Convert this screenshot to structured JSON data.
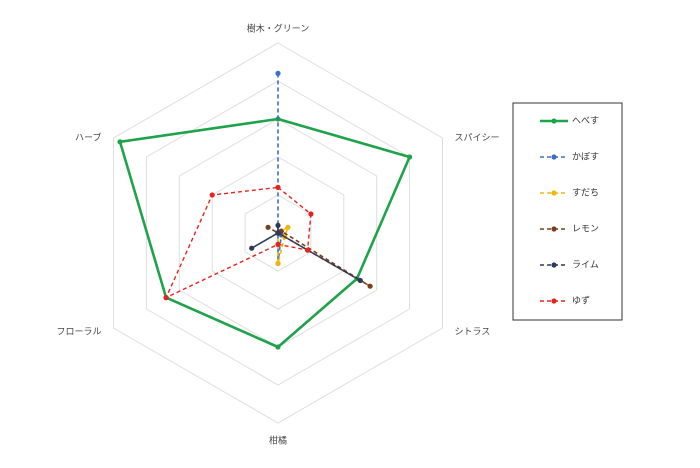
{
  "chart_data": {
    "type": "radar",
    "axes": [
      "樹木・グリーン",
      "スパイシー",
      "シトラス",
      "柑橘",
      "フローラル",
      "ハーブ"
    ],
    "rmax": 5,
    "grid_levels": 5,
    "grid": true,
    "legend_position": "right",
    "series": [
      {
        "name": "へべす",
        "color": "#1fa34a",
        "dash": "",
        "width": 2.6,
        "values": [
          3.0,
          4.0,
          2.4,
          3.0,
          3.4,
          4.8
        ]
      },
      {
        "name": "かぼす",
        "color": "#3d6ec9",
        "dash": "4,3",
        "width": 1.6,
        "values": [
          4.2,
          0.0,
          0.1,
          0.8,
          0.0,
          0.0
        ]
      },
      {
        "name": "すだち",
        "color": "#f2b705",
        "dash": "4,3",
        "width": 1.6,
        "values": [
          0.0,
          0.3,
          0.2,
          0.8,
          0.0,
          0.0
        ]
      },
      {
        "name": "レモン",
        "color": "#7b3f18",
        "dash": "4,3",
        "width": 1.6,
        "values": [
          0.0,
          0.1,
          2.8,
          0.0,
          0.0,
          0.3
        ]
      },
      {
        "name": "ライム",
        "color": "#2d3a5e",
        "dash": "4,3",
        "width": 1.6,
        "values": [
          0.2,
          0.0,
          2.5,
          0.0,
          0.8,
          0.0
        ]
      },
      {
        "name": "ゆず",
        "color": "#e8221d",
        "dash": "4,3",
        "width": 1.4,
        "values": [
          1.2,
          1.0,
          0.9,
          0.3,
          3.4,
          2.0
        ]
      }
    ]
  }
}
